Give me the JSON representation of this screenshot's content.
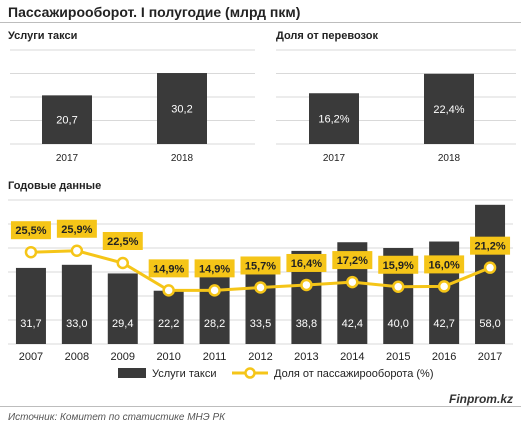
{
  "header": {
    "title": "Пассажирооборот. I полугодие (млрд пкм)"
  },
  "footer": {
    "source": "Источник: Комитет по статистике МНЭ РК",
    "brand": "Finprom.kz"
  },
  "colors": {
    "bar": "#3a3a3a",
    "line": "#f5c518",
    "label_bg": "#f5c518",
    "grid": "#d9d9d9"
  },
  "chart_data": [
    {
      "type": "bar",
      "title": "Услуги такси",
      "categories": [
        "2017",
        "2018"
      ],
      "values": [
        20.7,
        30.2
      ],
      "value_labels": [
        "20,7",
        "30,2"
      ],
      "ylim": [
        0,
        40
      ]
    },
    {
      "type": "bar",
      "title": "Доля  от перевозок",
      "categories": [
        "2017",
        "2018"
      ],
      "values": [
        16.2,
        22.4
      ],
      "value_labels": [
        "16,2%",
        "22,4%"
      ],
      "ylim": [
        0,
        30
      ]
    },
    {
      "type": "bar+line",
      "title": "Годовые данные",
      "categories": [
        "2007",
        "2008",
        "2009",
        "2010",
        "2011",
        "2012",
        "2013",
        "2014",
        "2015",
        "2016",
        "2017"
      ],
      "series": [
        {
          "name": "Услуги такси",
          "kind": "bar",
          "values": [
            31.7,
            33.0,
            29.4,
            22.2,
            28.2,
            33.5,
            38.8,
            42.4,
            40.0,
            42.7,
            58.0
          ],
          "value_labels": [
            "31,7",
            "33,0",
            "29,4",
            "22,2",
            "28,2",
            "33,5",
            "38,8",
            "42,4",
            "40,0",
            "42,7",
            "58,0"
          ]
        },
        {
          "name": "Доля от пассажирооборота (%)",
          "kind": "line",
          "values": [
            25.5,
            25.9,
            22.5,
            14.9,
            14.9,
            15.7,
            16.4,
            17.2,
            15.9,
            16.0,
            21.2
          ],
          "value_labels": [
            "25,5%",
            "25,9%",
            "22,5%",
            "14,9%",
            "14,9%",
            "15,7%",
            "16,4%",
            "17,2%",
            "15,9%",
            "16,0%",
            "21,2%"
          ]
        }
      ],
      "bar_ylim": [
        0,
        60
      ],
      "line_ylim": [
        0,
        40
      ],
      "legend": "bottom"
    }
  ]
}
